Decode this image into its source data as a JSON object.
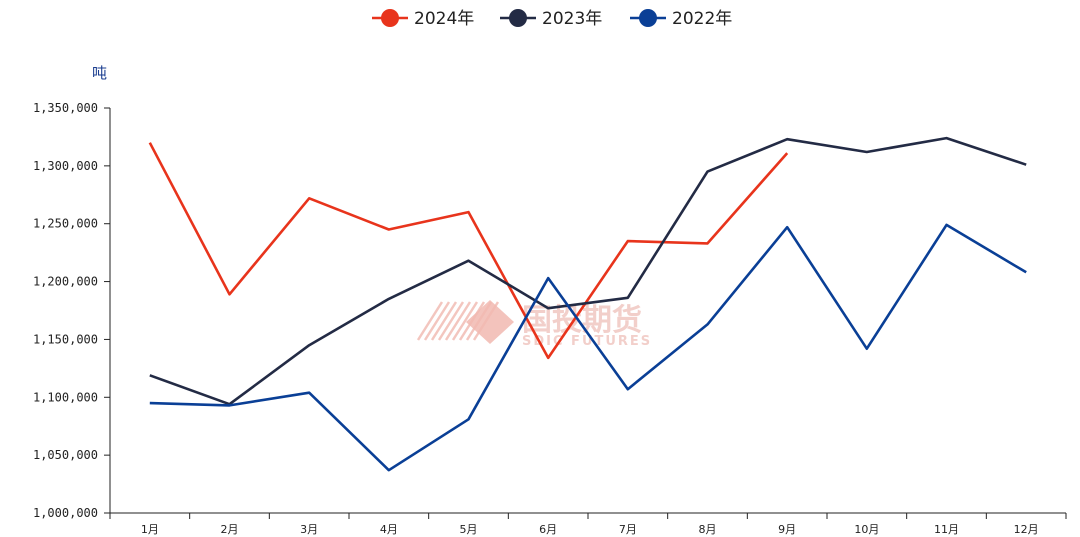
{
  "chart_data": {
    "type": "line",
    "title": "",
    "xlabel": "",
    "ylabel": "吨",
    "categories": [
      "1月",
      "2月",
      "3月",
      "4月",
      "5月",
      "6月",
      "7月",
      "8月",
      "9月",
      "10月",
      "11月",
      "12月"
    ],
    "ylim": [
      1000000,
      1350000
    ],
    "yticks": [
      "1,000,000",
      "1,050,000",
      "1,100,000",
      "1,150,000",
      "1,200,000",
      "1,250,000",
      "1,300,000",
      "1,350,000"
    ],
    "ytick_values": [
      1000000,
      1050000,
      1100000,
      1150000,
      1200000,
      1250000,
      1300000,
      1350000
    ],
    "legend_position": "top-center",
    "grid": false,
    "series": [
      {
        "name": "2024年",
        "color": "#e8341c",
        "values": [
          1320000,
          1189000,
          1272000,
          1245000,
          1260000,
          1134000,
          1235000,
          1233000,
          1311000,
          null,
          null,
          null
        ]
      },
      {
        "name": "2023年",
        "color": "#232b45",
        "values": [
          1119000,
          1094000,
          1145000,
          1185000,
          1218000,
          1177000,
          1186000,
          1295000,
          1323000,
          1312000,
          1324000,
          1301000
        ]
      },
      {
        "name": "2022年",
        "color": "#0a3f96",
        "values": [
          1095000,
          1093000,
          1104000,
          1037000,
          1081000,
          1203000,
          1107000,
          1163000,
          1247000,
          1142000,
          1249000,
          1208000
        ]
      }
    ]
  },
  "watermark": {
    "text_cn": "国投期货",
    "text_en": "SDIC FUTURES"
  }
}
